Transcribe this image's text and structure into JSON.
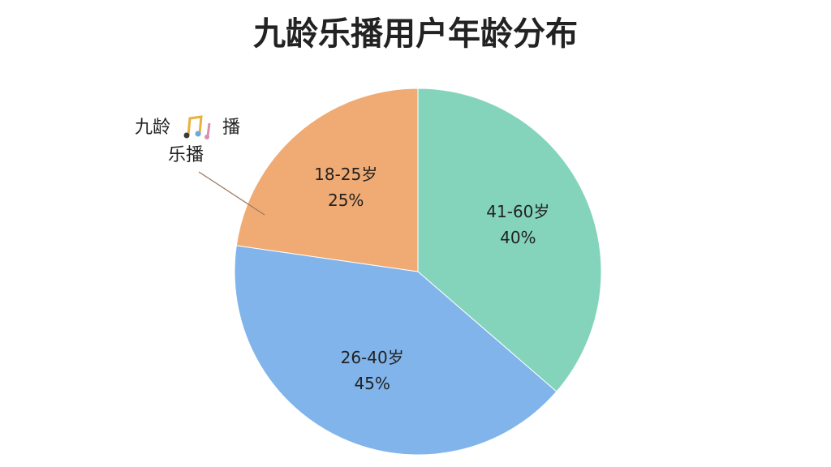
{
  "chart_data": {
    "type": "pie",
    "title": "九龄乐播用户年龄分布",
    "categories": [
      "41-60岁",
      "26-40岁",
      "18-25岁"
    ],
    "values": [
      40,
      45,
      25
    ],
    "value_labels": [
      "40%",
      "45%",
      "25%"
    ],
    "colors": [
      "#84d4bb",
      "#80b4ea",
      "#f0ab74"
    ],
    "annotation": [
      "九龄",
      "播",
      "乐播"
    ]
  }
}
